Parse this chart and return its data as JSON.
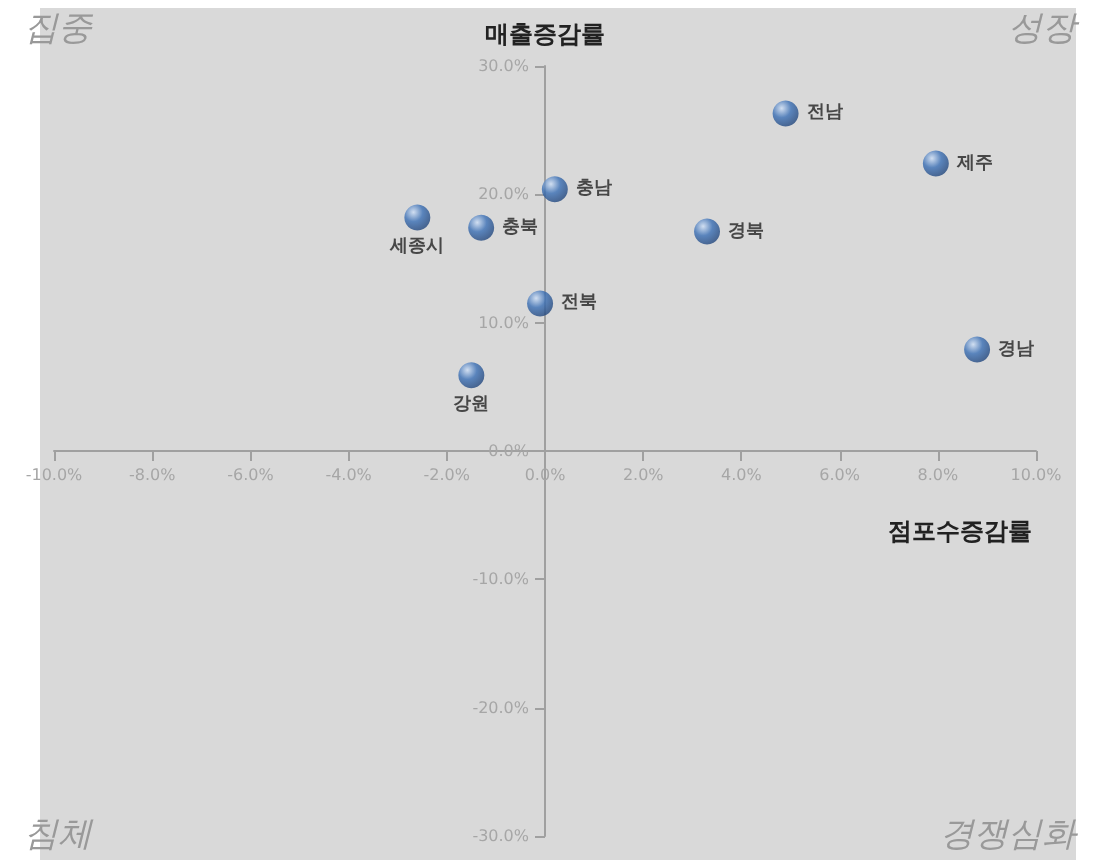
{
  "chart_data": {
    "type": "scatter",
    "xlabel": "점포수증감률",
    "ylabel": "매출증감률",
    "annotations": [
      "집중",
      "성장",
      "침체",
      "경쟁심화"
    ],
    "x": [
      4.9,
      7.96,
      0.2,
      -2.6,
      -1.3,
      3.3,
      -0.1,
      8.8,
      -1.5
    ],
    "values": [
      26.3,
      22.4,
      20.4,
      18.2,
      17.4,
      17.1,
      11.5,
      7.9,
      5.9
    ],
    "value_labels": [
      "전남",
      "제주",
      "충남",
      "세종시",
      "충북",
      "경북",
      "전북",
      "경남",
      "강원"
    ],
    "color": "#3a6fb5",
    "marker": "circle",
    "grid": false,
    "xlim": [
      -10,
      10
    ],
    "ylim": [
      -30,
      30
    ],
    "xticks": [
      {
        "value": -10,
        "label": "-10.0%"
      },
      {
        "value": -8,
        "label": "-8.0%"
      },
      {
        "value": -6,
        "label": "-6.0%"
      },
      {
        "value": -4,
        "label": "-4.0%"
      },
      {
        "value": -2,
        "label": "-2.0%"
      },
      {
        "value": 0,
        "label": "0.0%"
      },
      {
        "value": 2,
        "label": "2.0%"
      },
      {
        "value": 4,
        "label": "4.0%"
      },
      {
        "value": 6,
        "label": "6.0%"
      },
      {
        "value": 8,
        "label": "8.0%"
      },
      {
        "value": 10,
        "label": "10.0%"
      }
    ],
    "yticks": [
      {
        "value": -30,
        "label": "-30.0%"
      },
      {
        "value": -20,
        "label": "-20.0%"
      },
      {
        "value": -10,
        "label": "-10.0%"
      },
      {
        "value": 0,
        "label": "0.0%"
      },
      {
        "value": 10,
        "label": "10.0%"
      },
      {
        "value": 20,
        "label": "20.0%"
      },
      {
        "value": 30,
        "label": "30.0%"
      }
    ]
  }
}
